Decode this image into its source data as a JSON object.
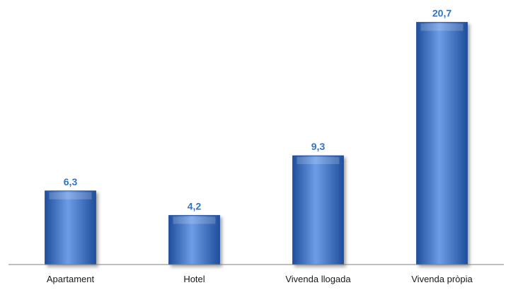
{
  "chart_data": {
    "type": "bar",
    "categories": [
      "Apartament",
      "Hotel",
      "Vivenda llogada",
      "Vivenda pròpia"
    ],
    "values": [
      6.3,
      4.2,
      9.3,
      20.7
    ],
    "value_labels": [
      "6,3",
      "4,2",
      "9,3",
      "20,7"
    ],
    "title": "",
    "xlabel": "",
    "ylabel": "",
    "ylim": [
      0,
      22
    ],
    "grid": false,
    "legend": "none",
    "colors": {
      "bar": "#3d78d0",
      "bar_light": "#6d9de6",
      "bar_dark": "#1f4e9c",
      "value_label": "#2e74c8",
      "axis": "#808080"
    }
  }
}
